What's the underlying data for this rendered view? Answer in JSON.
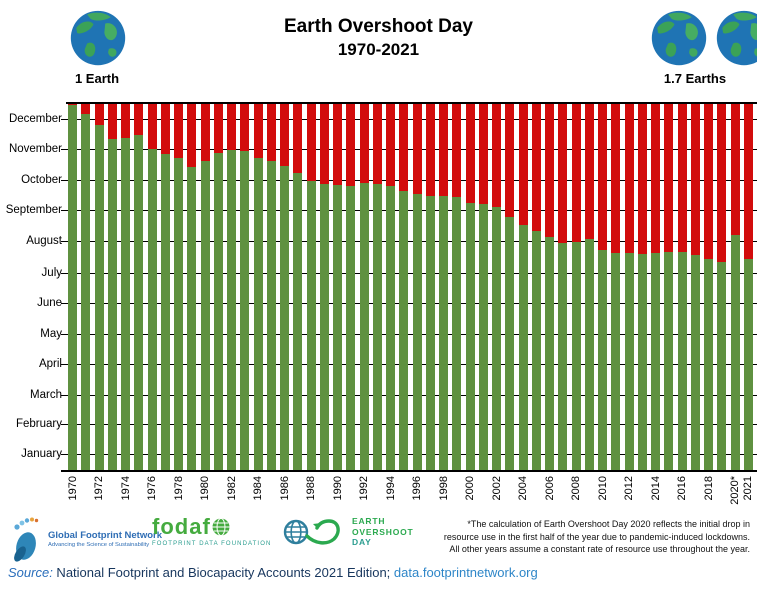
{
  "header": {
    "title_line1": "Earth Overshoot Day",
    "title_line2": "1970-2021",
    "left_earth_label": "1 Earth",
    "right_earth_label": "1.7 Earths"
  },
  "colors": {
    "bar_green": "#5f9140",
    "bar_red": "#d20c0c",
    "axis_black": "#000000",
    "earth_ocean": "#1f74b4",
    "earth_land": "#3ea85c",
    "gfn_blue": "#2e6db4",
    "fodafo_green": "#45ab3f",
    "fodafo_teal": "#2a9d8f",
    "eod_green": "#2ba94f",
    "eod_teal": "#2f7f9d",
    "source_navy": "#17365d",
    "source_blue": "#2a6ebb",
    "link_blue": "#2e86c8"
  },
  "chart_data": {
    "type": "bar",
    "stacked": true,
    "title": "Earth Overshoot Day 1970-2021",
    "description": "Stacked bars per year: green = days of the year before Earth Overshoot Day, red = overshoot days after it. Y axis runs January (bottom) to December (top).",
    "ylim": [
      1,
      365
    ],
    "grid": true,
    "y_tick_labels": [
      "December",
      "November",
      "October",
      "September",
      "August",
      "July",
      "June",
      "May",
      "April",
      "March",
      "February",
      "January"
    ],
    "month_mid_days": [
      350,
      320,
      289,
      259,
      228,
      197,
      167,
      136,
      106,
      75,
      46,
      16
    ],
    "years": [
      {
        "year": 1970,
        "date": "December 30",
        "day": 364,
        "tick": "1970"
      },
      {
        "year": 1971,
        "date": "December 21",
        "day": 355,
        "tick": ""
      },
      {
        "year": 1972,
        "date": "December 10",
        "day": 344,
        "tick": "1972"
      },
      {
        "year": 1973,
        "date": "November 26",
        "day": 330,
        "tick": ""
      },
      {
        "year": 1974,
        "date": "November 27",
        "day": 331,
        "tick": "1974"
      },
      {
        "year": 1975,
        "date": "November 30",
        "day": 334,
        "tick": ""
      },
      {
        "year": 1976,
        "date": "November 16",
        "day": 320,
        "tick": "1976"
      },
      {
        "year": 1977,
        "date": "November 11",
        "day": 315,
        "tick": ""
      },
      {
        "year": 1978,
        "date": "November 7",
        "day": 311,
        "tick": "1978"
      },
      {
        "year": 1979,
        "date": "October 29",
        "day": 302,
        "tick": ""
      },
      {
        "year": 1980,
        "date": "November 4",
        "day": 308,
        "tick": "1980"
      },
      {
        "year": 1981,
        "date": "November 12",
        "day": 316,
        "tick": ""
      },
      {
        "year": 1982,
        "date": "November 15",
        "day": 319,
        "tick": "1982"
      },
      {
        "year": 1983,
        "date": "November 14",
        "day": 318,
        "tick": ""
      },
      {
        "year": 1984,
        "date": "November 7",
        "day": 311,
        "tick": "1984"
      },
      {
        "year": 1985,
        "date": "November 4",
        "day": 308,
        "tick": ""
      },
      {
        "year": 1986,
        "date": "October 30",
        "day": 303,
        "tick": "1986"
      },
      {
        "year": 1987,
        "date": "October 23",
        "day": 296,
        "tick": ""
      },
      {
        "year": 1988,
        "date": "October 15",
        "day": 288,
        "tick": "1988"
      },
      {
        "year": 1989,
        "date": "October 12",
        "day": 285,
        "tick": ""
      },
      {
        "year": 1990,
        "date": "October 11",
        "day": 284,
        "tick": "1990"
      },
      {
        "year": 1991,
        "date": "October 10",
        "day": 283,
        "tick": ""
      },
      {
        "year": 1992,
        "date": "October 13",
        "day": 286,
        "tick": "1992"
      },
      {
        "year": 1993,
        "date": "October 12",
        "day": 285,
        "tick": ""
      },
      {
        "year": 1994,
        "date": "October 10",
        "day": 283,
        "tick": "1994"
      },
      {
        "year": 1995,
        "date": "October 5",
        "day": 278,
        "tick": ""
      },
      {
        "year": 1996,
        "date": "October 2",
        "day": 275,
        "tick": "1996"
      },
      {
        "year": 1997,
        "date": "September 30",
        "day": 273,
        "tick": ""
      },
      {
        "year": 1998,
        "date": "September 30",
        "day": 273,
        "tick": "1998"
      },
      {
        "year": 1999,
        "date": "September 29",
        "day": 272,
        "tick": ""
      },
      {
        "year": 2000,
        "date": "September 23",
        "day": 266,
        "tick": "2000"
      },
      {
        "year": 2001,
        "date": "September 22",
        "day": 265,
        "tick": ""
      },
      {
        "year": 2002,
        "date": "September 19",
        "day": 262,
        "tick": "2002"
      },
      {
        "year": 2003,
        "date": "September 9",
        "day": 252,
        "tick": ""
      },
      {
        "year": 2004,
        "date": "September 1",
        "day": 244,
        "tick": "2004"
      },
      {
        "year": 2005,
        "date": "August 26",
        "day": 238,
        "tick": ""
      },
      {
        "year": 2006,
        "date": "August 20",
        "day": 232,
        "tick": "2006"
      },
      {
        "year": 2007,
        "date": "August 14",
        "day": 226,
        "tick": ""
      },
      {
        "year": 2008,
        "date": "August 15",
        "day": 227,
        "tick": "2008"
      },
      {
        "year": 2009,
        "date": "August 18",
        "day": 230,
        "tick": ""
      },
      {
        "year": 2010,
        "date": "August 7",
        "day": 219,
        "tick": "2010"
      },
      {
        "year": 2011,
        "date": "August 4",
        "day": 216,
        "tick": ""
      },
      {
        "year": 2012,
        "date": "August 4",
        "day": 216,
        "tick": "2012"
      },
      {
        "year": 2013,
        "date": "August 3",
        "day": 215,
        "tick": ""
      },
      {
        "year": 2014,
        "date": "August 4",
        "day": 216,
        "tick": "2014"
      },
      {
        "year": 2015,
        "date": "August 5",
        "day": 217,
        "tick": ""
      },
      {
        "year": 2016,
        "date": "August 5",
        "day": 217,
        "tick": "2016"
      },
      {
        "year": 2017,
        "date": "August 2",
        "day": 214,
        "tick": ""
      },
      {
        "year": 2018,
        "date": "July 29",
        "day": 210,
        "tick": "2018"
      },
      {
        "year": 2019,
        "date": "July 26",
        "day": 207,
        "tick": ""
      },
      {
        "year": 2020,
        "date": "August 22",
        "day": 234,
        "tick": "2020*"
      },
      {
        "year": 2021,
        "date": "July 29",
        "day": 210,
        "tick": "2021"
      }
    ]
  },
  "footer": {
    "gfn": {
      "name": "Global Footprint Network",
      "tagline": "Advancing the Science of Sustainability"
    },
    "fodafo": {
      "wordmark_prefix": "fodaf",
      "tagline": "FOOTPRINT DATA FOUNDATION"
    },
    "eod": {
      "line1": "EARTH",
      "line2": "OVERSHOOT",
      "line3": "DAY"
    },
    "footnote": {
      "line1": "*The calculation of Earth Overshoot Day 2020 reflects the initial drop in",
      "line2": "resource use in the first half of the year due to pandemic-induced lockdowns.",
      "line3": "All other years assume a constant rate of resource use throughout the year."
    }
  },
  "source": {
    "prefix": "Source:",
    "text": " National Footprint and Biocapacity Accounts 2021 Edition; ",
    "link": "data.footprintnetwork.org"
  }
}
